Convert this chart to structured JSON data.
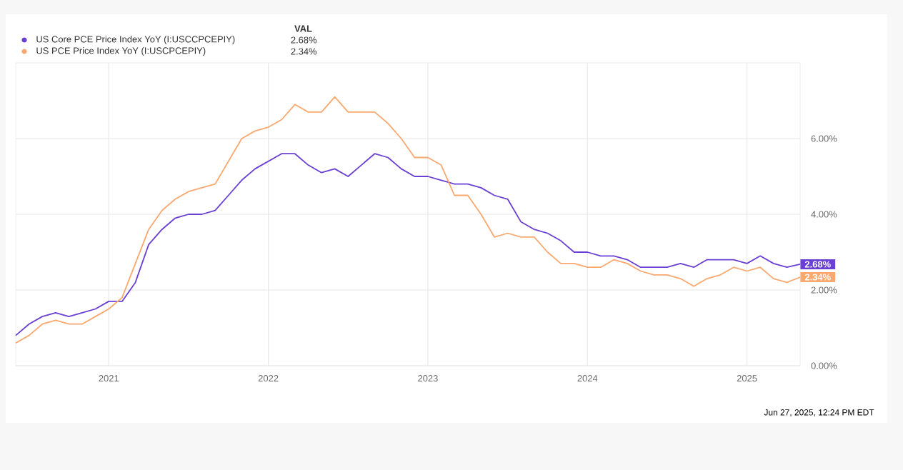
{
  "chart_data": {
    "type": "line",
    "legend_title": "VAL",
    "x": [
      "2020-06",
      "2020-07",
      "2020-08",
      "2020-09",
      "2020-10",
      "2020-11",
      "2020-12",
      "2021-01",
      "2021-02",
      "2021-03",
      "2021-04",
      "2021-05",
      "2021-06",
      "2021-07",
      "2021-08",
      "2021-09",
      "2021-10",
      "2021-11",
      "2021-12",
      "2022-01",
      "2022-02",
      "2022-03",
      "2022-04",
      "2022-05",
      "2022-06",
      "2022-07",
      "2022-08",
      "2022-09",
      "2022-10",
      "2022-11",
      "2022-12",
      "2023-01",
      "2023-02",
      "2023-03",
      "2023-04",
      "2023-05",
      "2023-06",
      "2023-07",
      "2023-08",
      "2023-09",
      "2023-10",
      "2023-11",
      "2023-12",
      "2024-01",
      "2024-02",
      "2024-03",
      "2024-04",
      "2024-05",
      "2024-06",
      "2024-07",
      "2024-08",
      "2024-09",
      "2024-10",
      "2024-11",
      "2024-12",
      "2025-01",
      "2025-02",
      "2025-03",
      "2025-04",
      "2025-05"
    ],
    "series": [
      {
        "name": "US Core PCE Price Index YoY (I:USCCPCEPIY)",
        "color": "#6a3fd3",
        "values": [
          0.8,
          1.1,
          1.3,
          1.4,
          1.3,
          1.4,
          1.5,
          1.7,
          1.7,
          2.2,
          3.2,
          3.6,
          3.9,
          4.0,
          4.0,
          4.1,
          4.5,
          4.9,
          5.2,
          5.4,
          5.6,
          5.6,
          5.3,
          5.1,
          5.2,
          5.0,
          5.3,
          5.6,
          5.5,
          5.2,
          5.0,
          5.0,
          4.9,
          4.8,
          4.8,
          4.7,
          4.5,
          4.4,
          3.8,
          3.6,
          3.5,
          3.3,
          3.0,
          3.0,
          2.9,
          2.9,
          2.8,
          2.6,
          2.6,
          2.6,
          2.7,
          2.6,
          2.8,
          2.8,
          2.8,
          2.7,
          2.9,
          2.7,
          2.6,
          2.68
        ]
      },
      {
        "name": "US PCE Price Index YoY (I:USCPCEPIY)",
        "color": "#f9a870",
        "values": [
          0.6,
          0.8,
          1.1,
          1.2,
          1.1,
          1.1,
          1.3,
          1.5,
          1.8,
          2.7,
          3.6,
          4.1,
          4.4,
          4.6,
          4.7,
          4.8,
          5.4,
          6.0,
          6.2,
          6.3,
          6.5,
          6.9,
          6.7,
          6.7,
          7.1,
          6.7,
          6.7,
          6.7,
          6.4,
          6.0,
          5.5,
          5.5,
          5.3,
          4.5,
          4.5,
          4.0,
          3.4,
          3.5,
          3.4,
          3.4,
          3.0,
          2.7,
          2.7,
          2.6,
          2.6,
          2.8,
          2.7,
          2.5,
          2.4,
          2.4,
          2.3,
          2.1,
          2.3,
          2.4,
          2.6,
          2.5,
          2.6,
          2.3,
          2.2,
          2.34
        ]
      }
    ],
    "xlim": [
      "2020-06",
      "2025-05"
    ],
    "xticks": [
      {
        "value": "2021-01",
        "label": "2021"
      },
      {
        "value": "2022-01",
        "label": "2022"
      },
      {
        "value": "2023-01",
        "label": "2023"
      },
      {
        "value": "2024-01",
        "label": "2024"
      },
      {
        "value": "2025-01",
        "label": "2025"
      }
    ],
    "ylim": [
      0,
      8
    ],
    "yticks": [
      {
        "value": 0,
        "label": "0.00%"
      },
      {
        "value": 2,
        "label": "2.00%"
      },
      {
        "value": 4,
        "label": "4.00%"
      },
      {
        "value": 6,
        "label": "6.00%"
      }
    ],
    "grid": true,
    "legend": "top left",
    "annotations": [
      {
        "text": "2.68%",
        "x": "2025-05",
        "y": 2.68
      },
      {
        "text": "2.34%",
        "x": "2025-05",
        "y": 2.34
      },
      "Jun 27, 2025, 12:24 PM EDT"
    ]
  }
}
